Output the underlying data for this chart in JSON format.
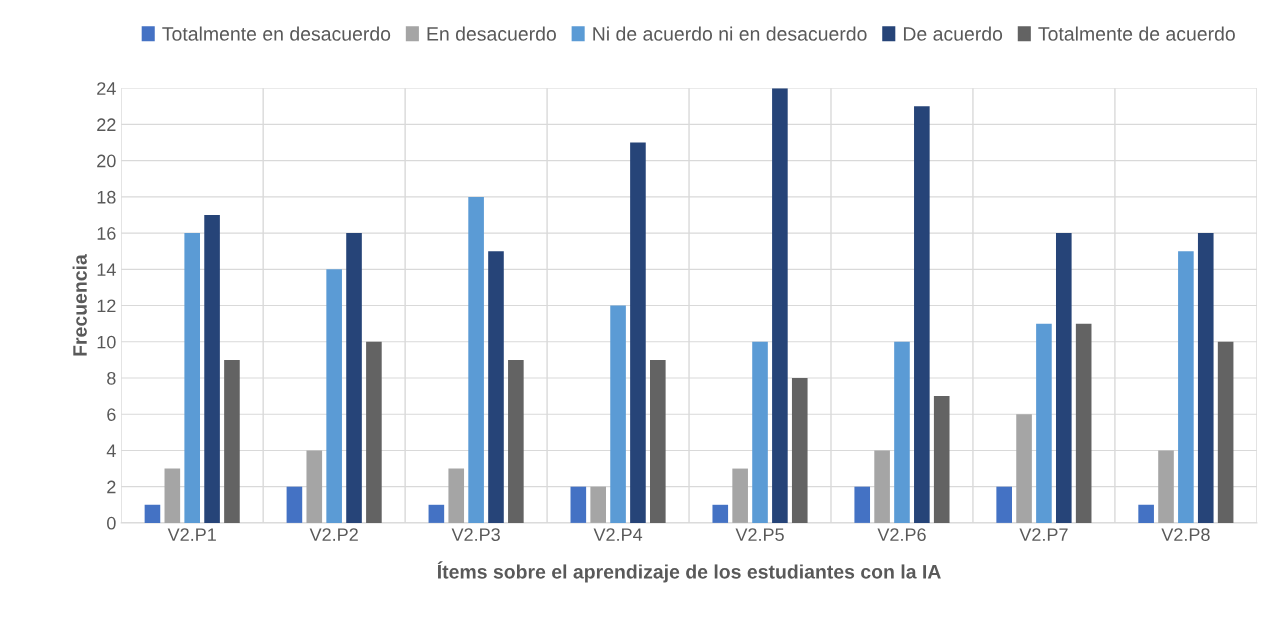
{
  "chart_data": {
    "type": "bar",
    "xlabel": "Ítems sobre el aprendizaje de los estudiantes con la IA",
    "ylabel": "Frecuencia",
    "categories": [
      "V2.P1",
      "V2.P2",
      "V2.P3",
      "V2.P4",
      "V2.P5",
      "V2.P6",
      "V2.P7",
      "V2.P8"
    ],
    "series": [
      {
        "name": "Totalmente en desacuerdo",
        "color": "#4472c4",
        "values": [
          1,
          2,
          1,
          2,
          1,
          2,
          2,
          1
        ]
      },
      {
        "name": "En desacuerdo",
        "color": "#a5a5a5",
        "values": [
          3,
          4,
          3,
          2,
          3,
          4,
          6,
          4
        ]
      },
      {
        "name": "Ni de acuerdo ni en desacuerdo",
        "color": "#5b9bd5",
        "values": [
          16,
          14,
          18,
          12,
          10,
          10,
          11,
          15
        ]
      },
      {
        "name": "De acuerdo",
        "color": "#264478",
        "values": [
          17,
          16,
          15,
          21,
          24,
          23,
          16,
          16
        ]
      },
      {
        "name": "Totalmente de acuerdo",
        "color": "#636363",
        "values": [
          9,
          10,
          9,
          9,
          8,
          7,
          11,
          10
        ]
      }
    ],
    "ylim": [
      0,
      24
    ],
    "yticks": [
      0,
      2,
      4,
      6,
      8,
      10,
      12,
      14,
      16,
      18,
      20,
      22,
      24
    ],
    "grid": true,
    "legend": "top"
  }
}
